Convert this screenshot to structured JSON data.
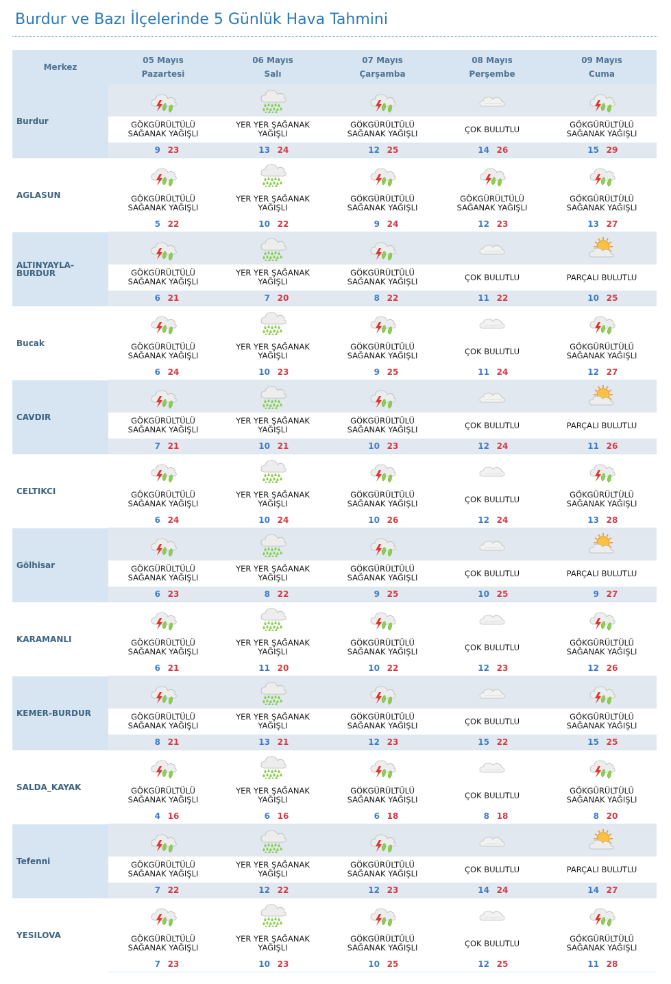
{
  "page": {
    "title": "Burdur ve Bazı İlçelerinde 5 Günlük Hava Tahmini"
  },
  "header": {
    "merkez": "Merkez",
    "days": [
      {
        "date": "05 Mayıs",
        "day": "Pazartesi"
      },
      {
        "date": "06 Mayıs",
        "day": "Salı"
      },
      {
        "date": "07 Mayıs",
        "day": "Çarşamba"
      },
      {
        "date": "08 Mayıs",
        "day": "Perşembe"
      },
      {
        "date": "09 Mayıs",
        "day": "Cuma"
      }
    ]
  },
  "conditions": {
    "thunder": {
      "line1": "GÖKGÜRÜLTÜLÜ",
      "line2": "SAĞANAK YAĞIŞLI",
      "icon": "thunderstorm-icon"
    },
    "showers": {
      "line1": "YER YER ŞAĞANAK",
      "line2": "YAĞIŞLI",
      "icon": "rain-showers-icon"
    },
    "cloudy": {
      "line1": "ÇOK BULUTLU",
      "line2": "",
      "icon": "cloud-icon"
    },
    "partly": {
      "line1": "PARÇALI BULUTLU",
      "line2": "",
      "icon": "partly-cloudy-icon"
    }
  },
  "colors": {
    "min": "#3d7bc7",
    "max": "#d43a43",
    "header_bg": "#d6e5f1",
    "title": "#2a79bb"
  },
  "cities": [
    {
      "name": "Burdur",
      "days": [
        {
          "c": "thunder",
          "min": "9",
          "max": "23"
        },
        {
          "c": "showers",
          "min": "13",
          "max": "24"
        },
        {
          "c": "thunder",
          "min": "12",
          "max": "25"
        },
        {
          "c": "cloudy",
          "min": "14",
          "max": "26"
        },
        {
          "c": "thunder",
          "min": "15",
          "max": "29"
        }
      ]
    },
    {
      "name": "AGLASUN",
      "days": [
        {
          "c": "thunder",
          "min": "5",
          "max": "22"
        },
        {
          "c": "showers",
          "min": "10",
          "max": "22"
        },
        {
          "c": "thunder",
          "min": "9",
          "max": "24"
        },
        {
          "c": "thunder",
          "min": "12",
          "max": "23"
        },
        {
          "c": "thunder",
          "min": "13",
          "max": "27"
        }
      ]
    },
    {
      "name": "ALTINYAYLA-\nBURDUR",
      "days": [
        {
          "c": "thunder",
          "min": "6",
          "max": "21"
        },
        {
          "c": "showers",
          "min": "7",
          "max": "20"
        },
        {
          "c": "thunder",
          "min": "8",
          "max": "22"
        },
        {
          "c": "cloudy",
          "min": "11",
          "max": "22"
        },
        {
          "c": "partly",
          "min": "10",
          "max": "25"
        }
      ]
    },
    {
      "name": "Bucak",
      "days": [
        {
          "c": "thunder",
          "min": "6",
          "max": "24"
        },
        {
          "c": "showers",
          "min": "10",
          "max": "23"
        },
        {
          "c": "thunder",
          "min": "9",
          "max": "25"
        },
        {
          "c": "cloudy",
          "min": "11",
          "max": "24"
        },
        {
          "c": "thunder",
          "min": "12",
          "max": "27"
        }
      ]
    },
    {
      "name": "CAVDIR",
      "days": [
        {
          "c": "thunder",
          "min": "7",
          "max": "21"
        },
        {
          "c": "showers",
          "min": "10",
          "max": "21"
        },
        {
          "c": "thunder",
          "min": "10",
          "max": "23"
        },
        {
          "c": "cloudy",
          "min": "12",
          "max": "24"
        },
        {
          "c": "partly",
          "min": "11",
          "max": "26"
        }
      ]
    },
    {
      "name": "CELTIKCI",
      "days": [
        {
          "c": "thunder",
          "min": "6",
          "max": "24"
        },
        {
          "c": "showers",
          "min": "10",
          "max": "24"
        },
        {
          "c": "thunder",
          "min": "10",
          "max": "26"
        },
        {
          "c": "cloudy",
          "min": "12",
          "max": "24"
        },
        {
          "c": "thunder",
          "min": "13",
          "max": "28"
        }
      ]
    },
    {
      "name": "Gölhisar",
      "days": [
        {
          "c": "thunder",
          "min": "6",
          "max": "23"
        },
        {
          "c": "showers",
          "min": "8",
          "max": "22"
        },
        {
          "c": "thunder",
          "min": "9",
          "max": "25"
        },
        {
          "c": "cloudy",
          "min": "10",
          "max": "25"
        },
        {
          "c": "partly",
          "min": "9",
          "max": "27"
        }
      ]
    },
    {
      "name": "KARAMANLI",
      "days": [
        {
          "c": "thunder",
          "min": "6",
          "max": "21"
        },
        {
          "c": "showers",
          "min": "11",
          "max": "20"
        },
        {
          "c": "thunder",
          "min": "10",
          "max": "22"
        },
        {
          "c": "cloudy",
          "min": "12",
          "max": "23"
        },
        {
          "c": "thunder",
          "min": "12",
          "max": "26"
        }
      ]
    },
    {
      "name": "KEMER-BURDUR",
      "days": [
        {
          "c": "thunder",
          "min": "8",
          "max": "21"
        },
        {
          "c": "showers",
          "min": "13",
          "max": "21"
        },
        {
          "c": "thunder",
          "min": "12",
          "max": "23"
        },
        {
          "c": "cloudy",
          "min": "15",
          "max": "22"
        },
        {
          "c": "thunder",
          "min": "15",
          "max": "25"
        }
      ]
    },
    {
      "name": "SALDA_KAYAK",
      "days": [
        {
          "c": "thunder",
          "min": "4",
          "max": "16"
        },
        {
          "c": "showers",
          "min": "6",
          "max": "16"
        },
        {
          "c": "thunder",
          "min": "6",
          "max": "18"
        },
        {
          "c": "cloudy",
          "min": "8",
          "max": "18"
        },
        {
          "c": "thunder",
          "min": "8",
          "max": "20"
        }
      ]
    },
    {
      "name": "Tefenni",
      "days": [
        {
          "c": "thunder",
          "min": "7",
          "max": "22"
        },
        {
          "c": "showers",
          "min": "12",
          "max": "22"
        },
        {
          "c": "thunder",
          "min": "12",
          "max": "23"
        },
        {
          "c": "cloudy",
          "min": "14",
          "max": "24"
        },
        {
          "c": "partly",
          "min": "14",
          "max": "27"
        }
      ]
    },
    {
      "name": "YESILOVA",
      "days": [
        {
          "c": "thunder",
          "min": "7",
          "max": "23"
        },
        {
          "c": "showers",
          "min": "10",
          "max": "23"
        },
        {
          "c": "thunder",
          "min": "10",
          "max": "25"
        },
        {
          "c": "cloudy",
          "min": "12",
          "max": "25"
        },
        {
          "c": "thunder",
          "min": "11",
          "max": "28"
        }
      ]
    }
  ]
}
